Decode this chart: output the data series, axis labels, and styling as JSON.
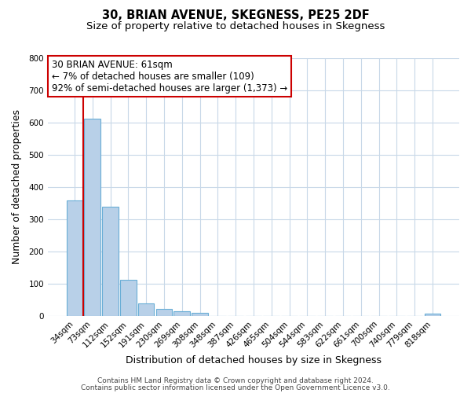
{
  "title": "30, BRIAN AVENUE, SKEGNESS, PE25 2DF",
  "subtitle": "Size of property relative to detached houses in Skegness",
  "xlabel": "Distribution of detached houses by size in Skegness",
  "ylabel": "Number of detached properties",
  "bar_labels": [
    "34sqm",
    "73sqm",
    "112sqm",
    "152sqm",
    "191sqm",
    "230sqm",
    "269sqm",
    "308sqm",
    "348sqm",
    "387sqm",
    "426sqm",
    "465sqm",
    "504sqm",
    "544sqm",
    "583sqm",
    "622sqm",
    "661sqm",
    "700sqm",
    "740sqm",
    "779sqm",
    "818sqm"
  ],
  "bar_heights": [
    358,
    612,
    340,
    113,
    38,
    22,
    15,
    10,
    0,
    0,
    0,
    0,
    0,
    0,
    0,
    0,
    0,
    0,
    0,
    0,
    8
  ],
  "bar_color": "#b8d0e8",
  "bar_edge_color": "#6aaed6",
  "reference_line_color": "#cc0000",
  "ylim": [
    0,
    800
  ],
  "yticks": [
    0,
    100,
    200,
    300,
    400,
    500,
    600,
    700,
    800
  ],
  "annotation_text": "30 BRIAN AVENUE: 61sqm\n← 7% of detached houses are smaller (109)\n92% of semi-detached houses are larger (1,373) →",
  "annotation_box_color": "#ffffff",
  "annotation_box_edge": "#cc0000",
  "footer_line1": "Contains HM Land Registry data © Crown copyright and database right 2024.",
  "footer_line2": "Contains public sector information licensed under the Open Government Licence v3.0.",
  "bg_color": "#ffffff",
  "grid_color": "#c8d8e8",
  "title_fontsize": 10.5,
  "subtitle_fontsize": 9.5,
  "axis_label_fontsize": 9,
  "tick_fontsize": 7.5,
  "footer_fontsize": 6.5,
  "annotation_fontsize": 8.5
}
